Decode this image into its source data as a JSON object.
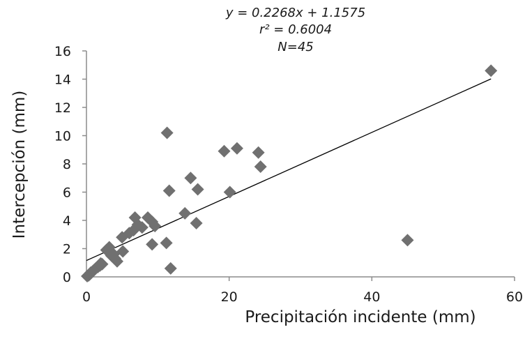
{
  "chart_data": {
    "type": "scatter",
    "title": "",
    "annotations": [
      "y = 0.2268x + 1.1575",
      "r² = 0.6004",
      "N=45"
    ],
    "xlabel": "Precipitación incidente (mm)",
    "ylabel": "Intercepción (mm)",
    "xlim": [
      0,
      60
    ],
    "ylim": [
      0,
      16
    ],
    "xticks": [
      0,
      20,
      40,
      60
    ],
    "yticks": [
      0,
      2,
      4,
      6,
      8,
      10,
      12,
      14,
      16
    ],
    "grid": false,
    "legend": "none",
    "marker": "diamond",
    "marker_color": "#707070",
    "trendline": {
      "slope": 0.2268,
      "intercept": 1.1575,
      "x_range": [
        0,
        56.7
      ]
    },
    "points": [
      [
        0.1,
        0.05
      ],
      [
        0.3,
        0.1
      ],
      [
        0.5,
        0.2
      ],
      [
        0.7,
        0.3
      ],
      [
        0.9,
        0.4
      ],
      [
        1.1,
        0.5
      ],
      [
        1.3,
        0.6
      ],
      [
        1.6,
        0.7
      ],
      [
        1.9,
        0.8
      ],
      [
        2.2,
        0.9
      ],
      [
        0.6,
        0.3
      ],
      [
        1.0,
        0.45
      ],
      [
        2.8,
        1.9
      ],
      [
        3.2,
        2.1
      ],
      [
        3.5,
        1.5
      ],
      [
        4.0,
        1.3
      ],
      [
        4.3,
        1.1
      ],
      [
        5.0,
        2.8
      ],
      [
        5.1,
        1.8
      ],
      [
        6.6,
        3.3
      ],
      [
        6.8,
        4.2
      ],
      [
        7.2,
        3.7
      ],
      [
        7.8,
        3.5
      ],
      [
        8.6,
        4.2
      ],
      [
        9.2,
        3.9
      ],
      [
        9.6,
        3.6
      ],
      [
        9.2,
        2.3
      ],
      [
        11.2,
        2.4
      ],
      [
        11.8,
        0.6
      ],
      [
        11.3,
        10.2
      ],
      [
        11.6,
        6.1
      ],
      [
        13.8,
        4.5
      ],
      [
        14.6,
        7.0
      ],
      [
        15.4,
        3.8
      ],
      [
        15.6,
        6.2
      ],
      [
        19.3,
        8.9
      ],
      [
        20.1,
        6.0
      ],
      [
        21.1,
        9.1
      ],
      [
        24.1,
        8.8
      ],
      [
        24.4,
        7.8
      ],
      [
        45.0,
        2.6
      ],
      [
        56.7,
        14.6
      ],
      [
        2.0,
        0.95
      ],
      [
        3.8,
        1.6
      ],
      [
        6.0,
        3.1
      ]
    ]
  }
}
